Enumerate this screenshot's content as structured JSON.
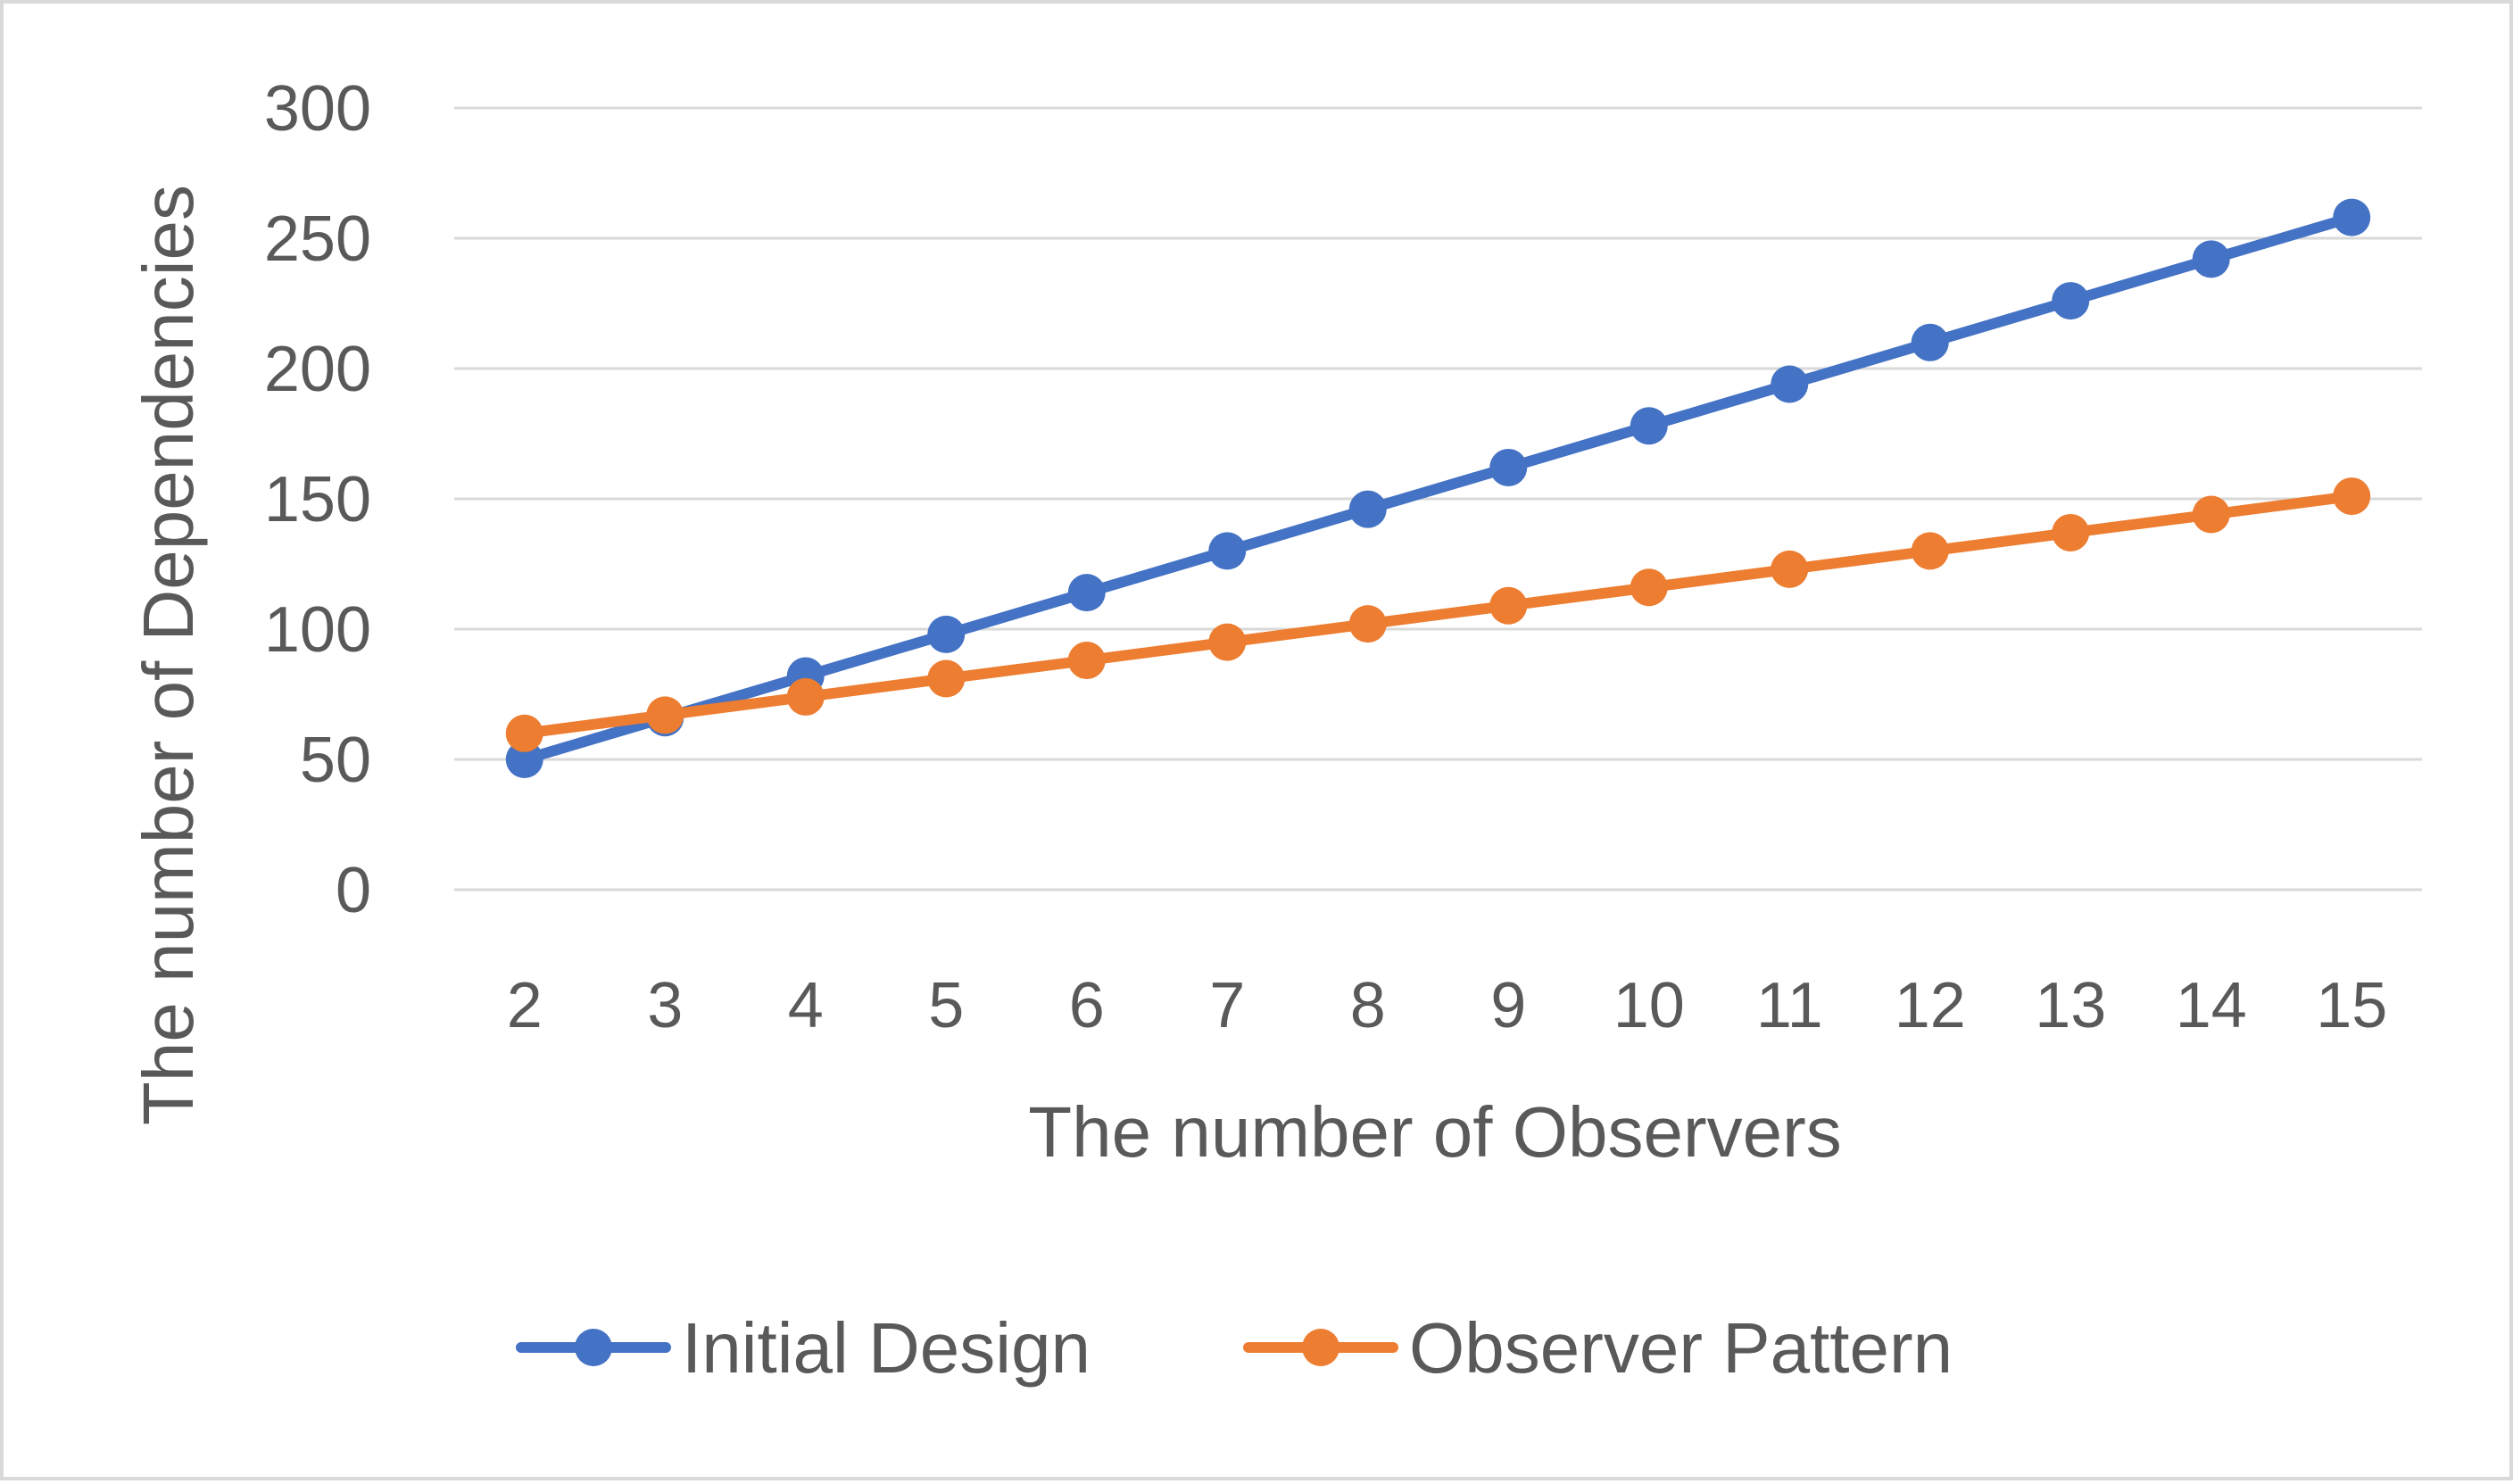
{
  "chart_data": {
    "type": "line",
    "title": "",
    "xlabel": "The number of Observers",
    "ylabel": "The number of Dependencies",
    "x": [
      2,
      3,
      4,
      5,
      6,
      7,
      8,
      9,
      10,
      11,
      12,
      13,
      14,
      15
    ],
    "ylim": [
      0,
      300
    ],
    "yticks": [
      0,
      50,
      100,
      150,
      200,
      250,
      300
    ],
    "grid": true,
    "legend_position": "bottom",
    "series": [
      {
        "name": "Initial Design",
        "color": "#4472c4",
        "marker": "circle",
        "values": [
          50,
          66,
          82,
          98,
          114,
          130,
          146,
          162,
          178,
          194,
          210,
          226,
          242,
          258
        ]
      },
      {
        "name": "Observer Pattern",
        "color": "#ed7d31",
        "marker": "circle",
        "values": [
          60,
          67,
          74,
          81,
          88,
          95,
          102,
          109,
          116,
          123,
          130,
          137,
          144,
          151
        ]
      }
    ]
  }
}
